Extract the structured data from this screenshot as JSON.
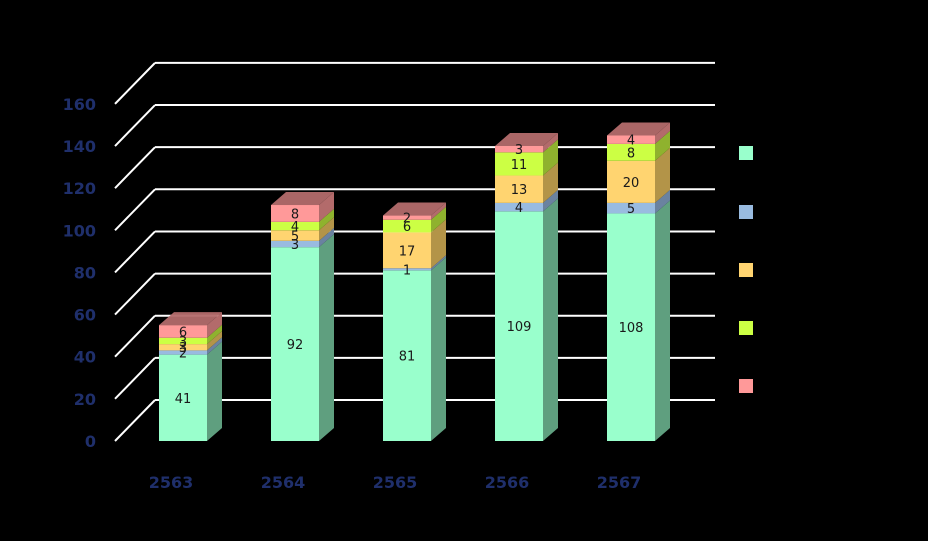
{
  "chart_data": {
    "type": "bar",
    "stacked": true,
    "three_d": true,
    "title": "",
    "xlabel": "",
    "ylabel": "",
    "ylim": [
      0,
      160
    ],
    "yticks": [
      0,
      20,
      40,
      60,
      80,
      100,
      120,
      140,
      160
    ],
    "ytick_labels": [
      "0",
      "20",
      "40",
      "60",
      "80",
      "100",
      "120",
      "140",
      "160"
    ],
    "grid": true,
    "legend_position": "right",
    "categories": [
      "2563",
      "2564",
      "2565",
      "2566",
      "2567"
    ],
    "series": [
      {
        "color": "#99ffcc",
        "side_color": "#5f9f7f",
        "values": [
          41,
          92,
          81,
          109,
          108
        ]
      },
      {
        "color": "#99bbe0",
        "side_color": "#6a82a0",
        "values": [
          2,
          3,
          1,
          4,
          5
        ]
      },
      {
        "color": "#ffd470",
        "side_color": "#b39448",
        "values": [
          3,
          5,
          17,
          13,
          20
        ]
      },
      {
        "color": "#ccff44",
        "side_color": "#8fb22e",
        "values": [
          3,
          4,
          6,
          11,
          8
        ]
      },
      {
        "color": "#ff9999",
        "side_color": "#b36b6b",
        "values": [
          6,
          8,
          2,
          3,
          4
        ]
      }
    ],
    "background": "#000000",
    "gridline_color": "#ffffff",
    "axis_text_color": "#1f2f6b"
  }
}
